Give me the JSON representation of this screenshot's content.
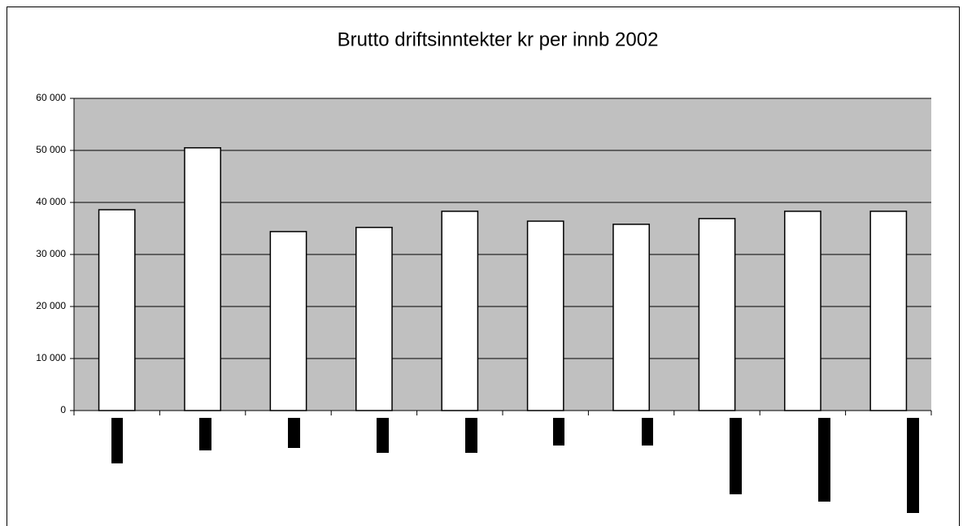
{
  "chart_data": {
    "type": "bar",
    "title": "Brutto driftsinntekter kr per innb 2002",
    "categories": [
      null,
      null,
      null,
      null,
      null,
      null,
      null,
      null,
      null,
      null
    ],
    "values": [
      38600,
      50500,
      34400,
      35200,
      38300,
      36400,
      35800,
      36900,
      38300,
      38300
    ],
    "color": "#ffffff",
    "plot_background": "#c0c0c0",
    "ylim": [
      0,
      60000
    ],
    "yticks": [
      {
        "value": 0,
        "label": "0"
      },
      {
        "value": 10000,
        "label": "10 000"
      },
      {
        "value": 20000,
        "label": "20 000"
      },
      {
        "value": 30000,
        "label": "30 000"
      },
      {
        "value": 40000,
        "label": "40 000"
      },
      {
        "value": 50000,
        "label": "50 000"
      },
      {
        "value": 60000,
        "label": "60 000"
      }
    ],
    "grid": true
  }
}
